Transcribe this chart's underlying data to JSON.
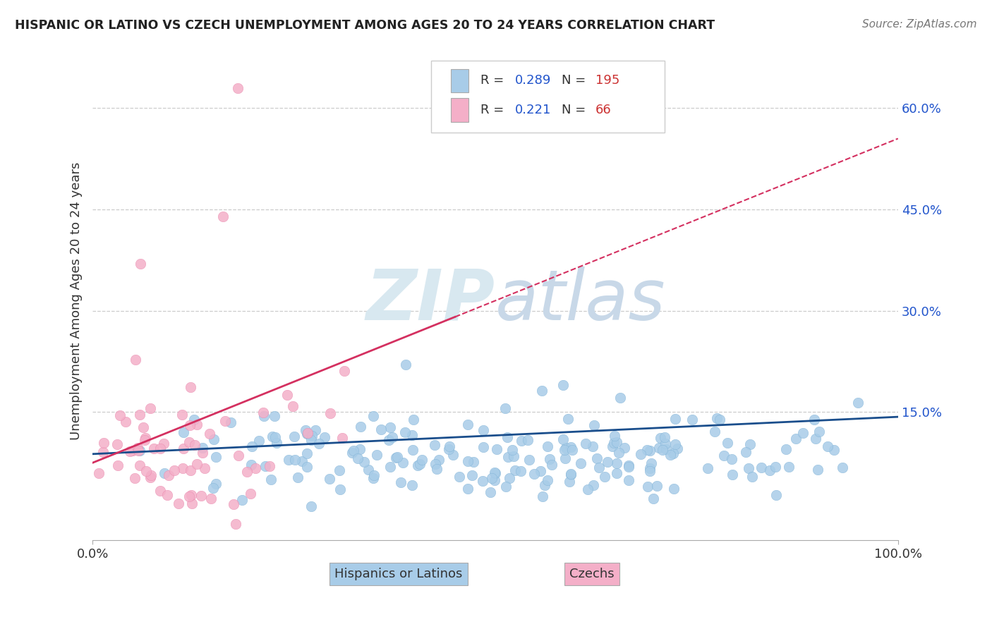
{
  "title": "HISPANIC OR LATINO VS CZECH UNEMPLOYMENT AMONG AGES 20 TO 24 YEARS CORRELATION CHART",
  "source": "Source: ZipAtlas.com",
  "ylabel": "Unemployment Among Ages 20 to 24 years",
  "ytick_labels": [
    "15.0%",
    "30.0%",
    "45.0%",
    "60.0%"
  ],
  "ytick_values": [
    0.15,
    0.3,
    0.45,
    0.6
  ],
  "xmin": 0.0,
  "xmax": 1.0,
  "ymin": -0.04,
  "ymax": 0.67,
  "blue_color": "#a8cce8",
  "blue_edge_color": "#7aafd4",
  "pink_color": "#f4afc8",
  "pink_edge_color": "#e880a8",
  "trend_blue_color": "#1a4e8c",
  "trend_pink_solid_color": "#d43060",
  "trend_pink_dash_color": "#d43060",
  "watermark_color": "#d8e8f0",
  "watermark_color2": "#c8d8e8",
  "background_color": "#ffffff",
  "grid_color": "#cccccc",
  "title_color": "#222222",
  "legend_R_color": "#2255cc",
  "legend_N_color": "#cc3333",
  "N_blue": 195,
  "N_pink": 66,
  "R_blue": 0.289,
  "R_pink": 0.221,
  "blue_intercept": 0.088,
  "blue_slope": 0.055,
  "pink_intercept": 0.075,
  "pink_slope": 0.48
}
